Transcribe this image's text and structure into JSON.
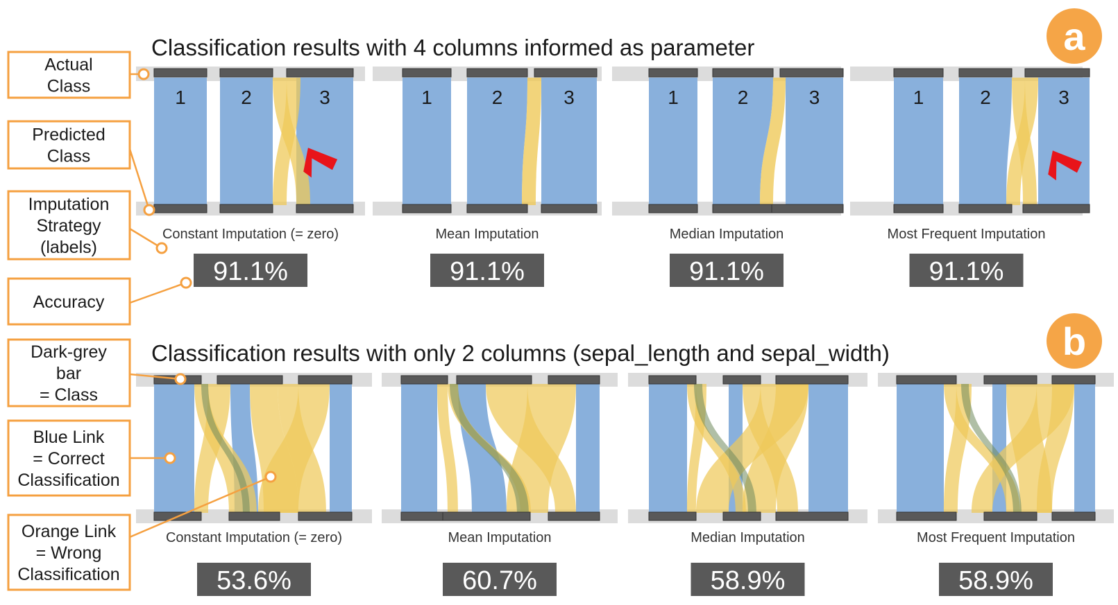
{
  "legend": [
    {
      "id": "actual-class",
      "lines": [
        "Actual",
        "Class"
      ]
    },
    {
      "id": "predicted-class",
      "lines": [
        "Predicted",
        "Class"
      ]
    },
    {
      "id": "imputation-strategy",
      "lines": [
        "Imputation",
        "Strategy",
        "(labels)"
      ]
    },
    {
      "id": "accuracy",
      "lines": [
        "Accuracy"
      ]
    },
    {
      "id": "dark-grey-bar",
      "lines": [
        "Dark-grey",
        "bar",
        "= Class"
      ]
    },
    {
      "id": "blue-link",
      "lines": [
        "Blue Link",
        "= Correct",
        "Classification"
      ]
    },
    {
      "id": "orange-link",
      "lines": [
        "Orange Link",
        "= Wrong",
        "Classification"
      ]
    }
  ],
  "sections": [
    {
      "badge": "a",
      "title": "Classification results with 4 columns informed as parameter",
      "panels": [
        {
          "label": "Constant Imputation (= zero)",
          "accuracy": "91.1%",
          "class_labels": [
            "1",
            "2",
            "3"
          ],
          "has_arrow": true
        },
        {
          "label": "Mean Imputation",
          "accuracy": "91.1%",
          "class_labels": [
            "1",
            "2",
            "3"
          ],
          "has_arrow": false
        },
        {
          "label": "Median Imputation",
          "accuracy": "91.1%",
          "class_labels": [
            "1",
            "2",
            "3"
          ],
          "has_arrow": false
        },
        {
          "label": "Most Frequent Imputation",
          "accuracy": "91.1%",
          "class_labels": [
            "1",
            "2",
            "3"
          ],
          "has_arrow": true
        }
      ]
    },
    {
      "badge": "b",
      "title": "Classification results with only 2 columns (sepal_length and sepal_width)",
      "panels": [
        {
          "label": "Constant Imputation (= zero)",
          "accuracy": "53.6%"
        },
        {
          "label": "Mean Imputation",
          "accuracy": "60.7%"
        },
        {
          "label": "Median Imputation",
          "accuracy": "58.9%"
        },
        {
          "label": "Most Frequent Imputation",
          "accuracy": "58.9%"
        }
      ]
    }
  ],
  "colors": {
    "blue_link": "#89b0dc",
    "orange_link": "#efc95a",
    "class_bar": "#595959",
    "track": "#dcdcdc",
    "accuracy_box": "#595959",
    "badge": "#f5a547",
    "callout": "#f5a040",
    "arrow": "#e8141a"
  }
}
